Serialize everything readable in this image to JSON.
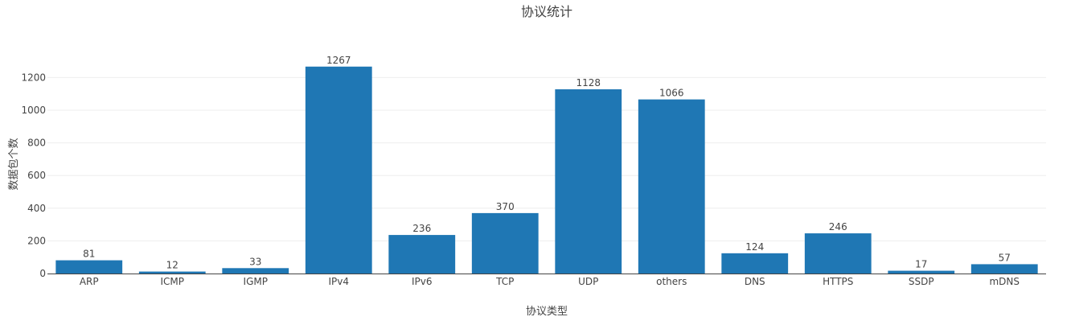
{
  "chart_data": {
    "type": "bar",
    "title": "协议统计",
    "xlabel": "协议类型",
    "ylabel": "数据包个数",
    "categories": [
      "ARP",
      "ICMP",
      "IGMP",
      "IPv4",
      "IPv6",
      "TCP",
      "UDP",
      "others",
      "DNS",
      "HTTPS",
      "SSDP",
      "mDNS"
    ],
    "values": [
      81,
      12,
      33,
      1267,
      236,
      370,
      1128,
      1066,
      124,
      246,
      17,
      57
    ],
    "data_labels": [
      "81",
      "12",
      "33",
      "1267",
      "236",
      "370",
      "1128",
      "1066",
      "124",
      "246",
      "17",
      "57"
    ],
    "ylim": [
      0,
      1330
    ],
    "yticks": [
      0,
      200,
      400,
      600,
      800,
      1000,
      1200
    ],
    "ytick_labels": [
      "0",
      "200",
      "400",
      "600",
      "800",
      "1000",
      "1200"
    ],
    "grid": true,
    "legend": "none",
    "colors": {
      "bar": "#1f77b4",
      "grid": "#eeeeee",
      "axis": "#444444",
      "text": "#444444"
    }
  }
}
